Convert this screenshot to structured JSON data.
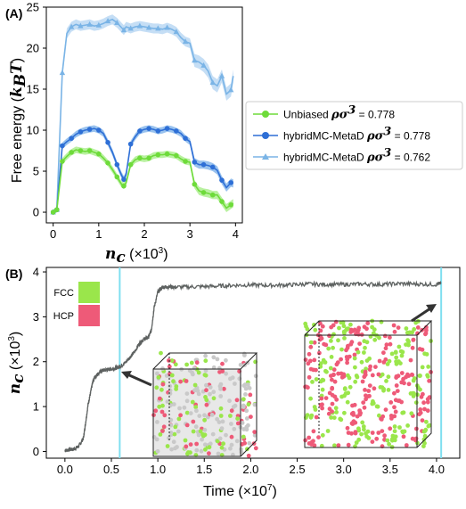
{
  "chart_data": [
    {
      "panel": "(A)",
      "type": "line",
      "xlabel": "n_c (×10³)",
      "ylabel": "Free energy (k_B T)",
      "xlim": [
        -0.15,
        4.15
      ],
      "ylim": [
        -1.3,
        25
      ],
      "xticks": [
        "0",
        "1",
        "2",
        "3",
        "4"
      ],
      "yticks": [
        "0",
        "5",
        "10",
        "15",
        "20",
        "25"
      ],
      "legend_position": "right",
      "series": [
        {
          "name": "Unbiased",
          "suffix": "= 0.778",
          "color": "#6edb3a",
          "band_color": "#a8ee88",
          "marker": "circle",
          "x": [
            0.0,
            0.08,
            0.2,
            0.3,
            0.4,
            0.5,
            0.6,
            0.7,
            0.8,
            0.9,
            1.0,
            1.1,
            1.2,
            1.3,
            1.4,
            1.5,
            1.55,
            1.6,
            1.7,
            1.8,
            1.9,
            2.0,
            2.1,
            2.2,
            2.3,
            2.4,
            2.5,
            2.6,
            2.7,
            2.8,
            2.9,
            3.0,
            3.1,
            3.2,
            3.3,
            3.4,
            3.5,
            3.6,
            3.7,
            3.8,
            3.9,
            3.95
          ],
          "y": [
            0.0,
            0.3,
            6.2,
            6.8,
            7.3,
            7.6,
            7.5,
            7.4,
            7.5,
            7.3,
            7.1,
            6.6,
            6.0,
            5.2,
            4.3,
            3.4,
            3.2,
            3.6,
            5.8,
            6.4,
            6.6,
            6.5,
            6.6,
            6.9,
            7.0,
            7.0,
            7.1,
            7.0,
            6.9,
            6.5,
            6.2,
            6.1,
            3.4,
            2.6,
            2.4,
            2.3,
            2.1,
            2.1,
            1.3,
            0.5,
            0.9,
            1.1
          ],
          "band": [
            0.3,
            0.3,
            0.4,
            0.4,
            0.4,
            0.4,
            0.4,
            0.4,
            0.4,
            0.4,
            0.4,
            0.4,
            0.4,
            0.4,
            0.4,
            0.4,
            0.4,
            0.4,
            0.4,
            0.4,
            0.4,
            0.4,
            0.4,
            0.4,
            0.4,
            0.4,
            0.4,
            0.4,
            0.4,
            0.4,
            0.4,
            0.4,
            0.5,
            0.5,
            0.5,
            0.5,
            0.5,
            0.5,
            0.5,
            0.5,
            0.5,
            0.5
          ]
        },
        {
          "name": "hybridMC-MetaD",
          "suffix": "= 0.778",
          "color": "#2e6fd6",
          "band_color": "#7fb3ea",
          "marker": "circle",
          "x": [
            0.0,
            0.08,
            0.2,
            0.3,
            0.4,
            0.5,
            0.6,
            0.7,
            0.8,
            0.9,
            1.0,
            1.1,
            1.2,
            1.3,
            1.4,
            1.5,
            1.55,
            1.6,
            1.7,
            1.8,
            1.9,
            2.0,
            2.1,
            2.2,
            2.3,
            2.4,
            2.5,
            2.6,
            2.7,
            2.8,
            2.9,
            3.0,
            3.1,
            3.2,
            3.3,
            3.4,
            3.5,
            3.6,
            3.7,
            3.8,
            3.9,
            3.95
          ],
          "y": [
            0.0,
            0.3,
            8.1,
            8.6,
            9.0,
            9.5,
            9.8,
            10.0,
            10.1,
            10.2,
            10.0,
            9.6,
            8.5,
            7.3,
            5.8,
            4.5,
            4.0,
            4.6,
            8.3,
            9.2,
            9.9,
            10.1,
            10.2,
            10.1,
            9.9,
            10.0,
            10.2,
            10.1,
            9.9,
            9.6,
            9.0,
            8.6,
            6.1,
            5.8,
            5.8,
            5.7,
            5.5,
            5.1,
            3.9,
            3.0,
            3.6,
            3.5
          ],
          "band": [
            0.3,
            0.3,
            0.4,
            0.4,
            0.4,
            0.4,
            0.4,
            0.4,
            0.4,
            0.4,
            0.4,
            0.4,
            0.4,
            0.4,
            0.4,
            0.4,
            0.4,
            0.4,
            0.4,
            0.4,
            0.4,
            0.4,
            0.4,
            0.4,
            0.4,
            0.4,
            0.4,
            0.4,
            0.4,
            0.4,
            0.4,
            0.4,
            0.5,
            0.5,
            0.5,
            0.5,
            0.5,
            0.5,
            0.5,
            0.5,
            0.5,
            0.5
          ]
        },
        {
          "name": "hybridMC-MetaD",
          "suffix": "= 0.762",
          "color": "#7ab4e6",
          "band_color": "#b6d6f3",
          "marker": "triangle",
          "x": [
            0.0,
            0.08,
            0.2,
            0.3,
            0.4,
            0.5,
            0.6,
            0.7,
            0.8,
            0.9,
            1.0,
            1.1,
            1.2,
            1.3,
            1.4,
            1.5,
            1.55,
            1.6,
            1.7,
            1.8,
            1.9,
            2.0,
            2.1,
            2.2,
            2.3,
            2.4,
            2.5,
            2.6,
            2.7,
            2.8,
            2.9,
            3.0,
            3.1,
            3.2,
            3.3,
            3.4,
            3.5,
            3.6,
            3.7,
            3.8,
            3.9,
            3.95
          ],
          "y": [
            0.0,
            0.3,
            17.0,
            21.8,
            22.6,
            22.9,
            22.7,
            22.8,
            22.9,
            22.7,
            22.8,
            23.0,
            23.3,
            23.5,
            23.1,
            22.5,
            22.2,
            22.6,
            22.4,
            22.6,
            22.7,
            22.6,
            22.5,
            22.4,
            22.4,
            22.3,
            22.5,
            22.3,
            22.0,
            21.3,
            20.8,
            20.6,
            18.5,
            18.3,
            17.9,
            17.2,
            15.8,
            15.4,
            16.6,
            14.4,
            14.9,
            16.6
          ],
          "band": [
            0.3,
            0.3,
            0.7,
            0.6,
            0.6,
            0.6,
            0.6,
            0.6,
            0.6,
            0.6,
            0.6,
            0.6,
            0.6,
            0.6,
            0.6,
            0.6,
            0.6,
            0.6,
            0.6,
            0.6,
            0.6,
            0.6,
            0.6,
            0.6,
            0.6,
            0.6,
            0.6,
            0.6,
            0.6,
            0.6,
            0.6,
            0.6,
            0.8,
            0.8,
            0.8,
            0.8,
            0.8,
            0.8,
            0.8,
            0.8,
            0.8,
            0.8
          ]
        }
      ]
    },
    {
      "panel": "(B)",
      "type": "line",
      "xlabel": "Time (×10⁷)",
      "ylabel": "n_c (×10³)",
      "xlim": [
        -0.2,
        4.25
      ],
      "ylim": [
        -0.15,
        4.1
      ],
      "xticks": [
        "0.0",
        "0.5",
        "1.0",
        "1.5",
        "2.0",
        "2.5",
        "3.0",
        "3.5",
        "4.0"
      ],
      "yticks": [
        "0",
        "1",
        "2",
        "3",
        "4"
      ],
      "grid": false,
      "series": [
        {
          "color": "#5d6160",
          "x": [
            0.0,
            0.05,
            0.1,
            0.15,
            0.2,
            0.22,
            0.25,
            0.28,
            0.3,
            0.32,
            0.35,
            0.4,
            0.45,
            0.5,
            0.55,
            0.6,
            0.65,
            0.7,
            0.75,
            0.8,
            0.85,
            0.9,
            0.93,
            0.96,
            1.0,
            1.05,
            1.1,
            1.2,
            1.4,
            1.6,
            1.8,
            2.0,
            2.2,
            2.4,
            2.6,
            2.8,
            3.0,
            3.2,
            3.4,
            3.6,
            3.8,
            4.0,
            4.05
          ],
          "y": [
            0.02,
            0.04,
            0.05,
            0.12,
            0.3,
            0.6,
            1.05,
            1.35,
            1.55,
            1.65,
            1.72,
            1.8,
            1.82,
            1.84,
            1.86,
            1.9,
            1.98,
            2.1,
            2.22,
            2.4,
            2.5,
            2.55,
            2.7,
            3.2,
            3.55,
            3.66,
            3.67,
            3.66,
            3.67,
            3.68,
            3.7,
            3.71,
            3.7,
            3.71,
            3.73,
            3.72,
            3.72,
            3.73,
            3.72,
            3.74,
            3.73,
            3.72,
            3.75
          ]
        }
      ],
      "markers": [
        {
          "x": 0.59,
          "color": "#7fdff0"
        },
        {
          "x": 4.05,
          "color": "#7fdff0"
        }
      ],
      "legend": [
        {
          "label": "FCC",
          "color": "#9ae64b"
        },
        {
          "label": "HCP",
          "color": "#ee5a78"
        }
      ]
    }
  ]
}
